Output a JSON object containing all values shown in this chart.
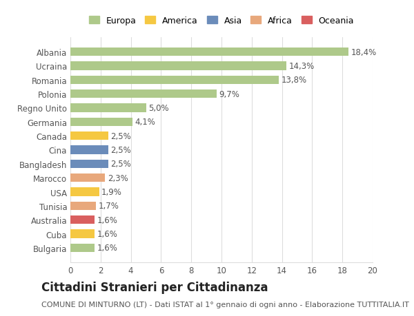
{
  "countries": [
    "Albania",
    "Ucraina",
    "Romania",
    "Polonia",
    "Regno Unito",
    "Germania",
    "Canada",
    "Cina",
    "Bangladesh",
    "Marocco",
    "USA",
    "Tunisia",
    "Australia",
    "Cuba",
    "Bulgaria"
  ],
  "values": [
    18.4,
    14.3,
    13.8,
    9.7,
    5.0,
    4.1,
    2.5,
    2.5,
    2.5,
    2.3,
    1.9,
    1.7,
    1.6,
    1.6,
    1.6
  ],
  "labels": [
    "18,4%",
    "14,3%",
    "13,8%",
    "9,7%",
    "5,0%",
    "4,1%",
    "2,5%",
    "2,5%",
    "2,5%",
    "2,3%",
    "1,9%",
    "1,7%",
    "1,6%",
    "1,6%",
    "1,6%"
  ],
  "continents": [
    "Europa",
    "Europa",
    "Europa",
    "Europa",
    "Europa",
    "Europa",
    "America",
    "Asia",
    "Asia",
    "Africa",
    "America",
    "Africa",
    "Oceania",
    "America",
    "Europa"
  ],
  "continent_colors": {
    "Europa": "#aec98a",
    "America": "#f5c842",
    "Asia": "#6b8cba",
    "Africa": "#e8a87c",
    "Oceania": "#d95f5f"
  },
  "legend_order": [
    "Europa",
    "America",
    "Asia",
    "Africa",
    "Oceania"
  ],
  "title": "Cittadini Stranieri per Cittadinanza",
  "subtitle": "COMUNE DI MINTURNO (LT) - Dati ISTAT al 1° gennaio di ogni anno - Elaborazione TUTTITALIA.IT",
  "xlim": [
    0,
    20
  ],
  "xticks": [
    0,
    2,
    4,
    6,
    8,
    10,
    12,
    14,
    16,
    18,
    20
  ],
  "background_color": "#ffffff",
  "grid_color": "#dddddd",
  "bar_height": 0.6,
  "label_fontsize": 8.5,
  "tick_fontsize": 8.5,
  "title_fontsize": 12,
  "subtitle_fontsize": 8
}
